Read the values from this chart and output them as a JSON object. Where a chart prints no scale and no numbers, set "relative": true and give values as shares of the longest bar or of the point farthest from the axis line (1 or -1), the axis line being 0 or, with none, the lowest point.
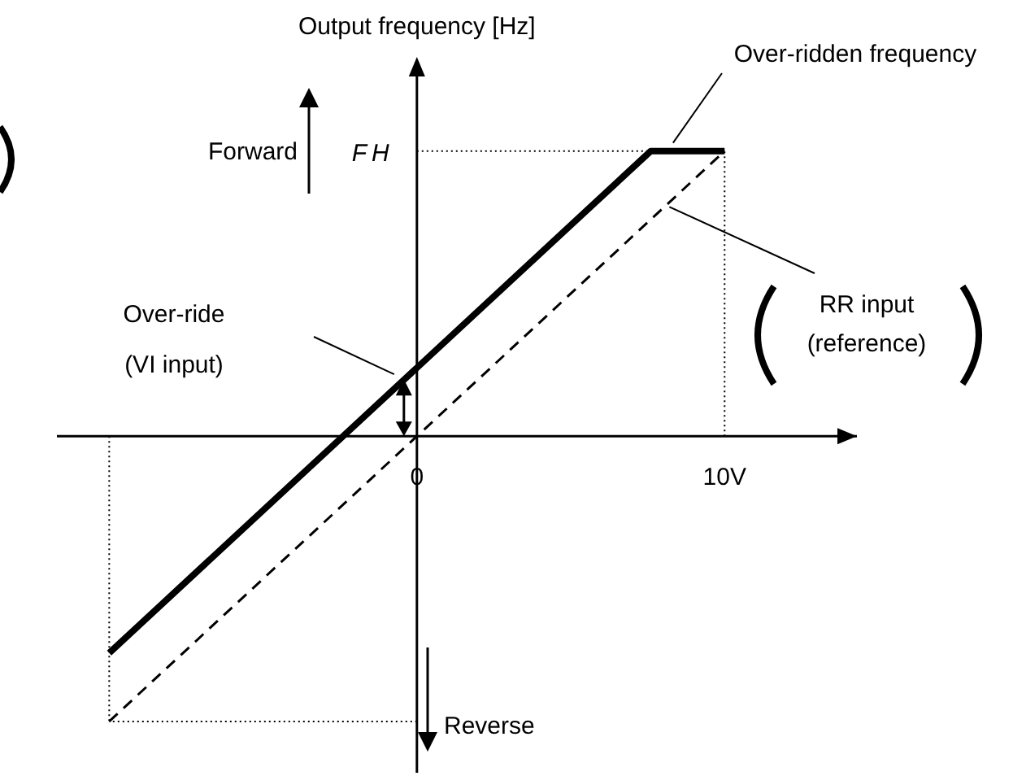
{
  "chart_data": {
    "type": "line",
    "relative": true,
    "ylabel": "Output frequency [Hz]",
    "xlim": [
      -11.7,
      14.3
    ],
    "xticks": [
      0,
      {
        "value": 10,
        "label": "10V"
      }
    ],
    "marker": "none",
    "series": [
      {
        "color": "#000000",
        "x": [
          -10,
          7.6,
          10
        ],
        "values": [
          -0.76,
          1,
          1
        ],
        "line_style": "solid"
      },
      {
        "color": "#000000",
        "x": [
          -10,
          10
        ],
        "values": [
          -1,
          1
        ],
        "line_style": "dashed"
      }
    ],
    "ref_lines": [
      {
        "axis": "y",
        "value": 1,
        "label": "FH",
        "line_style": "dotted"
      },
      {
        "axis": "y",
        "value": -1,
        "line_style": "dotted"
      },
      {
        "axis": "x",
        "value": 10,
        "line_style": "dotted"
      },
      {
        "axis": "x",
        "value": -10,
        "line_style": "dotted"
      }
    ],
    "annotations": [
      "Forward",
      "Reverse",
      "Over-ridden frequency",
      "Over-ride\n(VI input)",
      {
        "text": "RR input\n(reference)",
        "x": 8.1,
        "y": 0.81
      }
    ]
  }
}
